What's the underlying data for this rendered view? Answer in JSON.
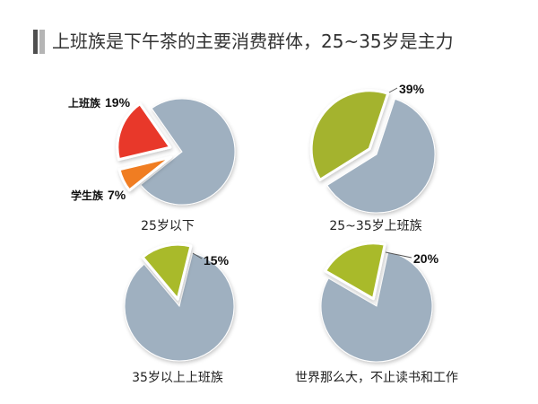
{
  "title": "上班族是下午茶的主要消费群体，25~35岁是主力",
  "colors": {
    "pie_base": "#9fb0c0"
  },
  "chart_data": [
    {
      "type": "pie",
      "caption": "25岁以下",
      "slices": [
        {
          "name": "上班族",
          "value": 19,
          "label": "19%",
          "color": "#e8392a"
        },
        {
          "name": "学生族",
          "value": 7,
          "label": "7%",
          "color": "#f07d20"
        }
      ]
    },
    {
      "type": "pie",
      "caption": "25~35岁上班族",
      "slices": [
        {
          "value": 39,
          "label": "39%",
          "color": "#a4b32d"
        }
      ]
    },
    {
      "type": "pie",
      "caption": "35岁以上上班族",
      "slices": [
        {
          "value": 15,
          "label": "15%",
          "color": "#a9ba2c"
        }
      ]
    },
    {
      "type": "pie",
      "caption": "世界那么大，不止读书和工作",
      "slices": [
        {
          "value": 20,
          "label": "20%",
          "color": "#a9ba2c"
        }
      ]
    }
  ]
}
